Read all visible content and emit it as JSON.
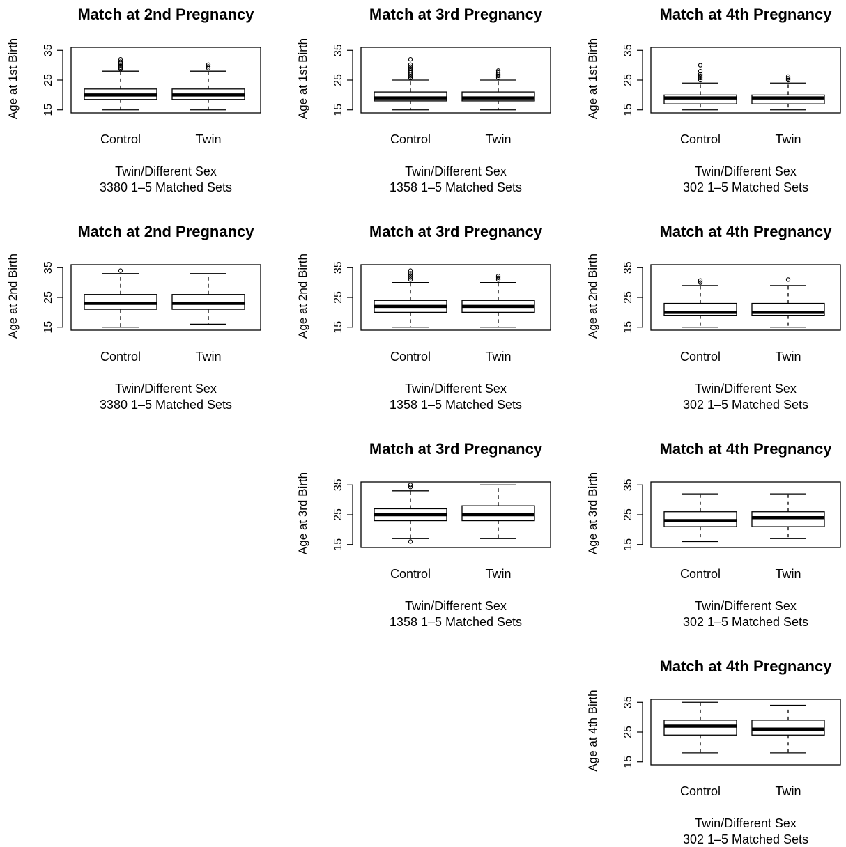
{
  "chart_data": [
    {
      "type": "boxplot",
      "row": 1,
      "col": 1,
      "title": "Match at 2nd Pregnancy",
      "ylabel": "Age at 1st Birth",
      "xlabel": "Twin/Different Sex",
      "sublabel": "3380 1–5 Matched Sets",
      "ylim": [
        14,
        36
      ],
      "yticks": [
        "15",
        "25",
        "35"
      ],
      "categories": [
        "Control",
        "Twin"
      ],
      "boxes": [
        {
          "whisker_low": 15,
          "q1": 18.5,
          "median": 20,
          "q3": 22,
          "whisker_high": 28,
          "outliers": [
            28.7,
            29.2,
            29.7,
            30.2,
            30.7,
            31.2,
            32
          ]
        },
        {
          "whisker_low": 15,
          "q1": 18.5,
          "median": 20,
          "q3": 22,
          "whisker_high": 28,
          "outliers": [
            29,
            29.6,
            30.2
          ]
        }
      ]
    },
    {
      "type": "boxplot",
      "row": 1,
      "col": 2,
      "title": "Match at 3rd Pregnancy",
      "ylabel": "Age at 1st Birth",
      "xlabel": "Twin/Different Sex",
      "sublabel": "1358 1–5 Matched Sets",
      "ylim": [
        14,
        36
      ],
      "yticks": [
        "15",
        "25",
        "35"
      ],
      "categories": [
        "Control",
        "Twin"
      ],
      "boxes": [
        {
          "whisker_low": 15,
          "q1": 18,
          "median": 19,
          "q3": 21,
          "whisker_high": 25,
          "outliers": [
            25.7,
            26.3,
            27,
            27.6,
            28.2,
            28.8,
            29.5,
            30.2,
            32
          ]
        },
        {
          "whisker_low": 15,
          "q1": 18,
          "median": 19,
          "q3": 21,
          "whisker_high": 25,
          "outliers": [
            25.8,
            26.4,
            27,
            27.6,
            28.2
          ]
        }
      ]
    },
    {
      "type": "boxplot",
      "row": 1,
      "col": 3,
      "title": "Match at 4th Pregnancy",
      "ylabel": "Age at 1st Birth",
      "xlabel": "Twin/Different Sex",
      "sublabel": "302 1–5 Matched Sets",
      "ylim": [
        14,
        36
      ],
      "yticks": [
        "15",
        "25",
        "35"
      ],
      "categories": [
        "Control",
        "Twin"
      ],
      "boxes": [
        {
          "whisker_low": 15,
          "q1": 17,
          "median": 19,
          "q3": 20,
          "whisker_high": 24,
          "outliers": [
            25,
            25.7,
            26.4,
            27,
            28,
            30
          ]
        },
        {
          "whisker_low": 15,
          "q1": 17,
          "median": 19,
          "q3": 20,
          "whisker_high": 24,
          "outliers": [
            25,
            25.6,
            26.2
          ]
        }
      ]
    },
    {
      "type": "boxplot",
      "row": 2,
      "col": 1,
      "title": "Match at 2nd Pregnancy",
      "ylabel": "Age at 2nd Birth",
      "xlabel": "Twin/Different Sex",
      "sublabel": "3380 1–5 Matched Sets",
      "ylim": [
        14,
        36
      ],
      "yticks": [
        "15",
        "25",
        "35"
      ],
      "categories": [
        "Control",
        "Twin"
      ],
      "boxes": [
        {
          "whisker_low": 15,
          "q1": 21,
          "median": 23,
          "q3": 26,
          "whisker_high": 33,
          "outliers": [
            34
          ]
        },
        {
          "whisker_low": 16,
          "q1": 21,
          "median": 23,
          "q3": 26,
          "whisker_high": 33,
          "outliers": []
        }
      ]
    },
    {
      "type": "boxplot",
      "row": 2,
      "col": 2,
      "title": "Match at 3rd Pregnancy",
      "ylabel": "Age at 2nd Birth",
      "xlabel": "Twin/Different Sex",
      "sublabel": "1358 1–5 Matched Sets",
      "ylim": [
        14,
        36
      ],
      "yticks": [
        "15",
        "25",
        "35"
      ],
      "categories": [
        "Control",
        "Twin"
      ],
      "boxes": [
        {
          "whisker_low": 15,
          "q1": 20,
          "median": 22,
          "q3": 24,
          "whisker_high": 30,
          "outliers": [
            31,
            31.7,
            32.4,
            33.1,
            34
          ]
        },
        {
          "whisker_low": 15,
          "q1": 20,
          "median": 22,
          "q3": 24,
          "whisker_high": 30,
          "outliers": [
            31,
            31.6,
            32.2
          ]
        }
      ]
    },
    {
      "type": "boxplot",
      "row": 2,
      "col": 3,
      "title": "Match at 4th Pregnancy",
      "ylabel": "Age at 2nd Birth",
      "xlabel": "Twin/Different Sex",
      "sublabel": "302 1–5 Matched Sets",
      "ylim": [
        14,
        36
      ],
      "yticks": [
        "15",
        "25",
        "35"
      ],
      "categories": [
        "Control",
        "Twin"
      ],
      "boxes": [
        {
          "whisker_low": 15,
          "q1": 19,
          "median": 20,
          "q3": 23,
          "whisker_high": 29,
          "outliers": [
            30,
            30.7
          ]
        },
        {
          "whisker_low": 15,
          "q1": 19,
          "median": 20,
          "q3": 23,
          "whisker_high": 29,
          "outliers": [
            31
          ]
        }
      ]
    },
    {
      "type": "boxplot",
      "row": 3,
      "col": 2,
      "title": "Match at 3rd Pregnancy",
      "ylabel": "Age at 3rd Birth",
      "xlabel": "Twin/Different Sex",
      "sublabel": "1358 1–5 Matched Sets",
      "ylim": [
        14,
        36
      ],
      "yticks": [
        "15",
        "25",
        "35"
      ],
      "categories": [
        "Control",
        "Twin"
      ],
      "boxes": [
        {
          "whisker_low": 17,
          "q1": 23,
          "median": 25,
          "q3": 27,
          "whisker_high": 33,
          "outliers": [
            34.3,
            35,
            16
          ]
        },
        {
          "whisker_low": 17,
          "q1": 23,
          "median": 25,
          "q3": 28,
          "whisker_high": 35,
          "outliers": []
        }
      ]
    },
    {
      "type": "boxplot",
      "row": 3,
      "col": 3,
      "title": "Match at 4th Pregnancy",
      "ylabel": "Age at 3rd Birth",
      "xlabel": "Twin/Different Sex",
      "sublabel": "302 1–5 Matched Sets",
      "ylim": [
        14,
        36
      ],
      "yticks": [
        "15",
        "25",
        "35"
      ],
      "categories": [
        "Control",
        "Twin"
      ],
      "boxes": [
        {
          "whisker_low": 16,
          "q1": 21,
          "median": 23,
          "q3": 26,
          "whisker_high": 32,
          "outliers": []
        },
        {
          "whisker_low": 17,
          "q1": 21,
          "median": 24,
          "q3": 26,
          "whisker_high": 32,
          "outliers": []
        }
      ]
    },
    {
      "type": "boxplot",
      "row": 4,
      "col": 3,
      "title": "Match at 4th Pregnancy",
      "ylabel": "Age at 4th Birth",
      "xlabel": "Twin/Different Sex",
      "sublabel": "302 1–5 Matched Sets",
      "ylim": [
        14,
        36
      ],
      "yticks": [
        "15",
        "25",
        "35"
      ],
      "categories": [
        "Control",
        "Twin"
      ],
      "boxes": [
        {
          "whisker_low": 18,
          "q1": 24,
          "median": 27,
          "q3": 29,
          "whisker_high": 35,
          "outliers": []
        },
        {
          "whisker_low": 18,
          "q1": 24,
          "median": 26,
          "q3": 29,
          "whisker_high": 34,
          "outliers": []
        }
      ]
    }
  ]
}
